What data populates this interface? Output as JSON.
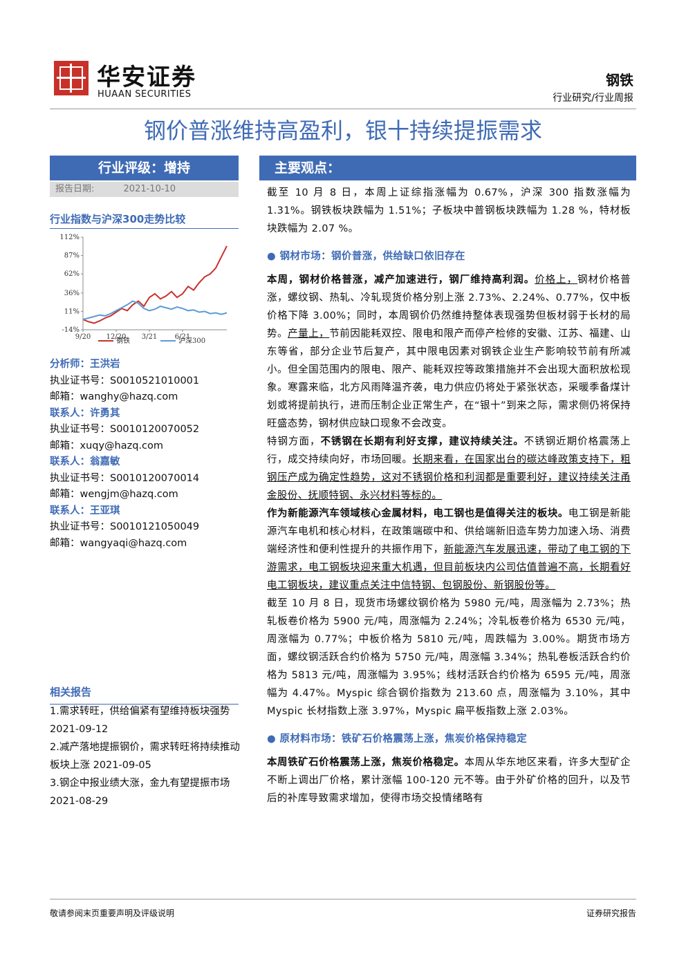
{
  "header": {
    "logo_cn": "华安证券",
    "logo_en": "HUAAN SECURITIES",
    "industry": "钢铁",
    "category": "行业研究/行业周报"
  },
  "title": "钢价普涨维持高盈利，银十持续提振需求",
  "rating": {
    "label": "行业评级：增持",
    "date_label": "报告日期:",
    "date": "2021-10-10"
  },
  "chart_title": "行业指数与沪深300走势比较",
  "chart_data": {
    "type": "line",
    "categories": [
      "9/20",
      null,
      null,
      null,
      null,
      null,
      "12/20",
      null,
      null,
      null,
      null,
      null,
      "3/21",
      null,
      null,
      null,
      null,
      null,
      "6/21",
      null,
      null,
      null,
      null,
      null,
      null,
      null,
      null
    ],
    "series": [
      {
        "name": "钢铁",
        "color": "#c8312a",
        "values": [
          0,
          -3,
          -5,
          -2,
          2,
          5,
          10,
          15,
          12,
          20,
          25,
          18,
          30,
          35,
          28,
          32,
          38,
          30,
          35,
          45,
          40,
          50,
          58,
          62,
          70,
          85,
          100
        ]
      },
      {
        "name": "沪深300",
        "color": "#5b9bd5",
        "values": [
          0,
          2,
          4,
          6,
          5,
          8,
          12,
          16,
          20,
          25,
          22,
          15,
          12,
          14,
          18,
          16,
          14,
          17,
          15,
          12,
          13,
          10,
          11,
          8,
          9,
          7,
          9
        ]
      }
    ],
    "ylim": [
      -14,
      112
    ],
    "yticks": [
      {
        "value": -14,
        "label": "-14%"
      },
      {
        "value": 11,
        "label": "11%"
      },
      {
        "value": 36,
        "label": "36%"
      },
      {
        "value": 62,
        "label": "62%"
      },
      {
        "value": 87,
        "label": "87%"
      },
      {
        "value": 112,
        "label": "112%"
      }
    ]
  },
  "analysts": [
    {
      "role": "分析师：王洪岩",
      "cert_label": "执业证书号：",
      "cert": "S0010521010001",
      "email_label": "邮箱：",
      "email": "wanghy@hazq.com"
    },
    {
      "role": "联系人：许勇其",
      "cert_label": "执业证书号：",
      "cert": "S0010120070052",
      "email_label": "邮箱：",
      "email": "xuqy@hazq.com"
    },
    {
      "role": "联系人：翁嘉敏",
      "cert_label": "执业证书号：",
      "cert": "S0010120070014",
      "email_label": "邮箱：",
      "email": "wengjm@hazq.com"
    },
    {
      "role": "联系人：王亚琪",
      "cert_label": "执业证书号：",
      "cert": "S0010121050049",
      "email_label": "邮箱：",
      "email": "wangyaqi@hazq.com"
    }
  ],
  "related": {
    "title": "相关报告",
    "items": [
      "1.需求转旺，供给偏紧有望维持板块强势 2021-09-12",
      "2.减产落地提振钢价，需求转旺将持续推动板块上涨 2021-09-05",
      "3.钢企中报业绩大涨，金九有望提振市场 2021-08-29"
    ]
  },
  "main": {
    "title": "主要观点：",
    "p1": "截至 10 月 8 日，本周上证综指涨幅为 0.67%，沪深 300 指数涨幅为 1.31%。钢铁板块跌幅为 1.51%；子板块中普钢板块跌幅为 1.28 %，特材板块跌幅为 2.07 %。",
    "s1": "钢材市场：钢价普涨，供给缺口依旧存在",
    "p2": [
      "本周，钢材价格普涨，减产加速进行，钢厂维持高利润。",
      "价格上，",
      "钢材价格普涨，螺纹钢、热轧、冷轧现货价格分别上涨 2.73%、2.24%、0.77%，仅中板价格下降 3.00%；同时，本周钢价仍然维持整体表现强势但板材弱于长材的局势。",
      "产量上，",
      "节前因能耗双控、限电和限产而停产检修的安徽、江苏、福建、山东等省，部分企业节后复产，其中限电因素对钢铁企业生产影响较节前有所减小。但全国范围内的限电、限产、能耗双控等政策措施并不会出现大面积放松现象。寒露来临，北方风雨降温齐袭，电力供应仍将处于紧张状态，采暖季备煤计划或将提前执行，进而压制企业正常生产，在“银十”到来之际，需求侧仍将保持旺盛态势，钢材供应缺口现象不会改变。"
    ],
    "p3": [
      "特钢方面，",
      "不锈钢在长期有利好支撑，建议持续关注。",
      "不锈钢近期价格震荡上行，成交持续向好，市场回暖。",
      "长期来看，在国家出台的碳达峰政策支持下，粗钢压产成为确定性趋势，这对不锈钢价格和利润都是重要利好，建议持续关注甬金股份、抚顺特钢、永兴材料等标的。"
    ],
    "p4": [
      "作为新能源汽车领域核心金属材料，电工钢也是值得关注的板块。",
      "电工钢是新能源汽车电机和核心材料，在政策端碳中和、供给端新旧造车势力加速入场、消费端经济性和便利性提升的共振作用下，",
      "新能源汽车发展迅速，带动了电工钢的下游需求，电工钢板块迎来重大机遇，但目前板块内公司估值普遍不高，长期看好电工钢板块，建议重点关注中信特钢、包钢股份、新钢股份等。"
    ],
    "p5": "截至 10 月 8 日，现货市场螺纹钢价格为 5980 元/吨，周涨幅为 2.73%；热轧板卷价格为 5900 元/吨，周涨幅为 2.24%；冷轧板卷价格为 6530 元/吨，周涨幅为 0.77%；中板价格为 5810 元/吨，周跌幅为 3.00%。期货市场方面，螺纹钢活跃合约价格为 5750 元/吨，周涨幅 3.34%；热轧卷板活跃合约价格为 5813 元/吨，周涨幅为 3.95%；线材活跃合约价格为 6595 元/吨，周涨幅为 4.47%。Myspic 综合钢价指数为 213.60 点，周涨幅为 3.10%，其中 Myspic 长材指数上涨 3.97%，Myspic 扁平板指数上涨 2.03%。",
    "s2": "原材料市场：铁矿石价格震荡上涨，焦炭价格保持稳定",
    "p6": [
      "本周铁矿石价格震荡上涨，焦炭价格稳定。",
      "本周从华东地区来看，许多大型矿企不断上调出厂价格，累计涨幅 100-120 元不等。由于外矿价格的回升，以及节后的补库导致需求增加，使得市场交投情绪略有"
    ]
  },
  "footer": {
    "left": "敬请参阅末页重要声明及评级说明",
    "right": "证券研究报告"
  }
}
